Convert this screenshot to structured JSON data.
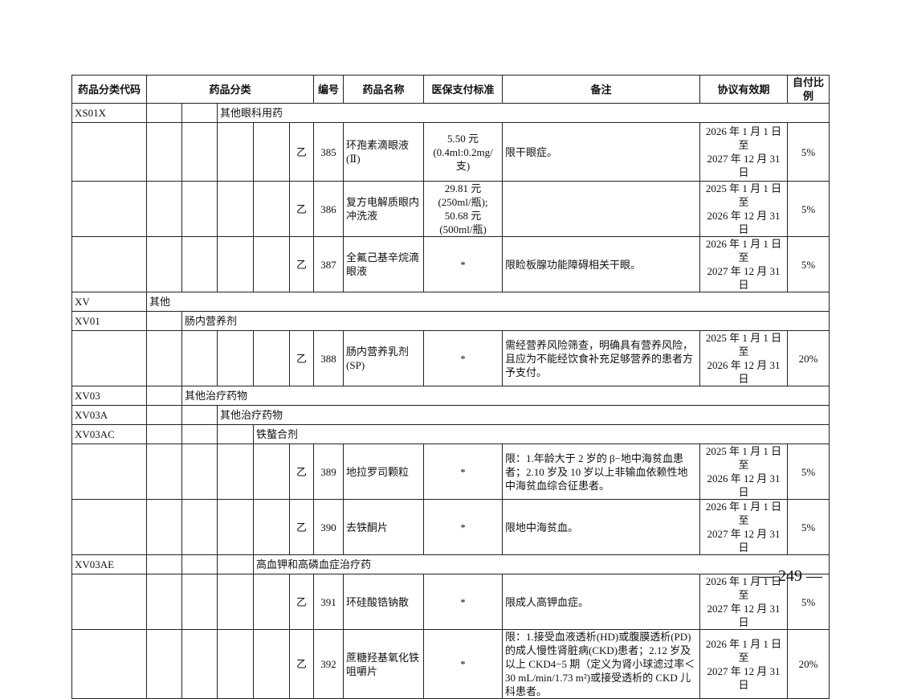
{
  "headers": [
    "药品分类代码",
    "药品分类",
    "编号",
    "药品名称",
    "医保支付标准",
    "备注",
    "协议有效期",
    "自付比例"
  ],
  "rows": [
    {
      "type": "cat",
      "code": "XS01X",
      "level": 3,
      "name": "其他眼科用药"
    },
    {
      "type": "drug",
      "grade": "乙",
      "no": "385",
      "name": "环孢素滴眼液(Ⅱ)",
      "std": "5.50 元\n(0.4ml:0.2mg/支)",
      "remark": "限干眼症。",
      "period": "2026 年 1 月 1 日至\n2027 年 12 月 31 日",
      "ratio": "5%"
    },
    {
      "type": "drug",
      "grade": "乙",
      "no": "386",
      "name": "复方电解质眼内冲洗液",
      "std": "29.81 元\n(250ml/瓶);\n50.68 元\n(500ml/瓶)",
      "remark": "",
      "period": "2025 年 1 月 1 日至\n2026 年 12 月 31 日",
      "ratio": "5%"
    },
    {
      "type": "drug",
      "grade": "乙",
      "no": "387",
      "name": "全氟己基辛烷滴眼液",
      "std": "*",
      "remark": "限睑板腺功能障碍相关干眼。",
      "period": "2026 年 1 月 1 日至\n2027 年 12 月 31 日",
      "ratio": "5%"
    },
    {
      "type": "cat",
      "code": "XV",
      "level": 1,
      "name": "其他"
    },
    {
      "type": "cat",
      "code": "XV01",
      "level": 2,
      "name": "肠内营养剂"
    },
    {
      "type": "drug",
      "grade": "乙",
      "no": "388",
      "name": "肠内营养乳剂(SP)",
      "std": "*",
      "remark": "需经营养风险筛查，明确具有营养风险，且应为不能经饮食补充足够营养的患者方予支付。",
      "period": "2025 年 1 月 1 日至\n2026 年 12 月 31 日",
      "ratio": "20%"
    },
    {
      "type": "cat",
      "code": "XV03",
      "level": 2,
      "name": "其他治疗药物"
    },
    {
      "type": "cat",
      "code": "XV03A",
      "level": 3,
      "name": "其他治疗药物"
    },
    {
      "type": "cat",
      "code": "XV03AC",
      "level": 4,
      "name": "铁螯合剂"
    },
    {
      "type": "drug",
      "grade": "乙",
      "no": "389",
      "name": "地拉罗司颗粒",
      "std": "*",
      "remark": "限：1.年龄大于 2 岁的 β−地中海贫血患者；2.10 岁及 10 岁以上非输血依赖性地中海贫血综合征患者。",
      "period": "2025 年 1 月 1 日至\n2026 年 12 月 31 日",
      "ratio": "5%"
    },
    {
      "type": "drug",
      "grade": "乙",
      "no": "390",
      "name": "去铁酮片",
      "std": "*",
      "remark": "限地中海贫血。",
      "period": "2026 年 1 月 1 日至\n2027 年 12 月 31 日",
      "ratio": "5%"
    },
    {
      "type": "cat",
      "code": "XV03AE",
      "level": 4,
      "name": "高血钾和高磷血症治疗药"
    },
    {
      "type": "drug",
      "grade": "乙",
      "no": "391",
      "name": "环硅酸锆钠散",
      "std": "*",
      "remark": "限成人高钾血症。",
      "period": "2026 年 1 月 1 日至\n2027 年 12 月 31 日",
      "ratio": "5%"
    },
    {
      "type": "drug",
      "grade": "乙",
      "no": "392",
      "name": "蔗糖羟基氧化铁咀嚼片",
      "std": "*",
      "remark": "限：1.接受血液透析(HD)或腹膜透析(PD)的成人慢性肾脏病(CKD)患者；2.12 岁及以上 CKD4−5 期（定义为肾小球滤过率＜30 mL/min/1.73 m²)或接受透析的 CKD 儿科患者。",
      "period": "2026 年 1 月 1 日至\n2027 年 12 月 31 日",
      "ratio": "20%"
    }
  ],
  "page_number": "— 249 —"
}
